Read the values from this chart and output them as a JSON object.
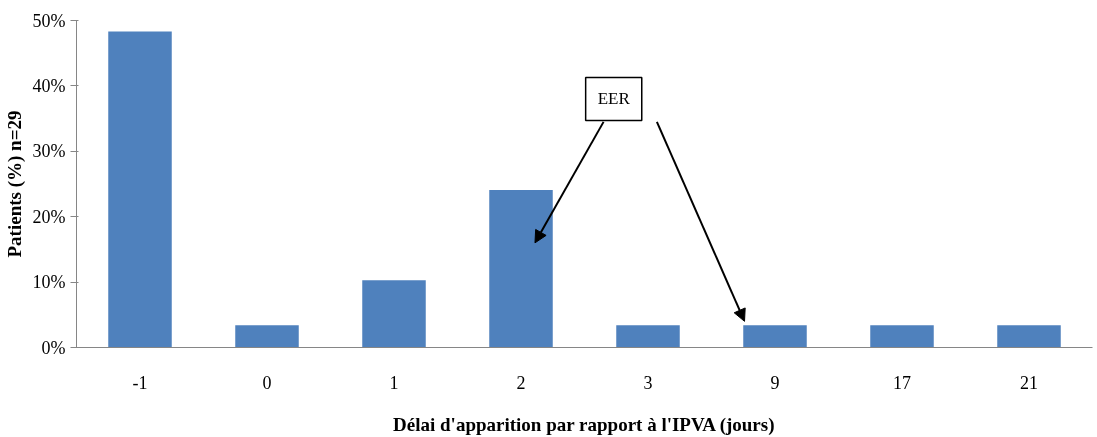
{
  "chart_data": {
    "type": "bar",
    "xlabel": "Délai d'apparition par rapport à l'IPVA (jours)",
    "ylabel": "Patients (%) n=29",
    "categories": [
      "-1",
      "0",
      "1",
      "2",
      "3",
      "9",
      "17",
      "21"
    ],
    "values": [
      48.3,
      3.4,
      10.3,
      24.1,
      3.4,
      3.4,
      3.4,
      3.4
    ],
    "color": "#4f81bd",
    "ylim": [
      0,
      50
    ],
    "yticks": [
      {
        "value": 0,
        "label": "0%"
      },
      {
        "value": 10,
        "label": "10%"
      },
      {
        "value": 20,
        "label": "20%"
      },
      {
        "value": 30,
        "label": "30%"
      },
      {
        "value": 40,
        "label": "40%"
      },
      {
        "value": 50,
        "label": "50%"
      }
    ],
    "grid": false,
    "annotations": [
      "EER"
    ]
  }
}
